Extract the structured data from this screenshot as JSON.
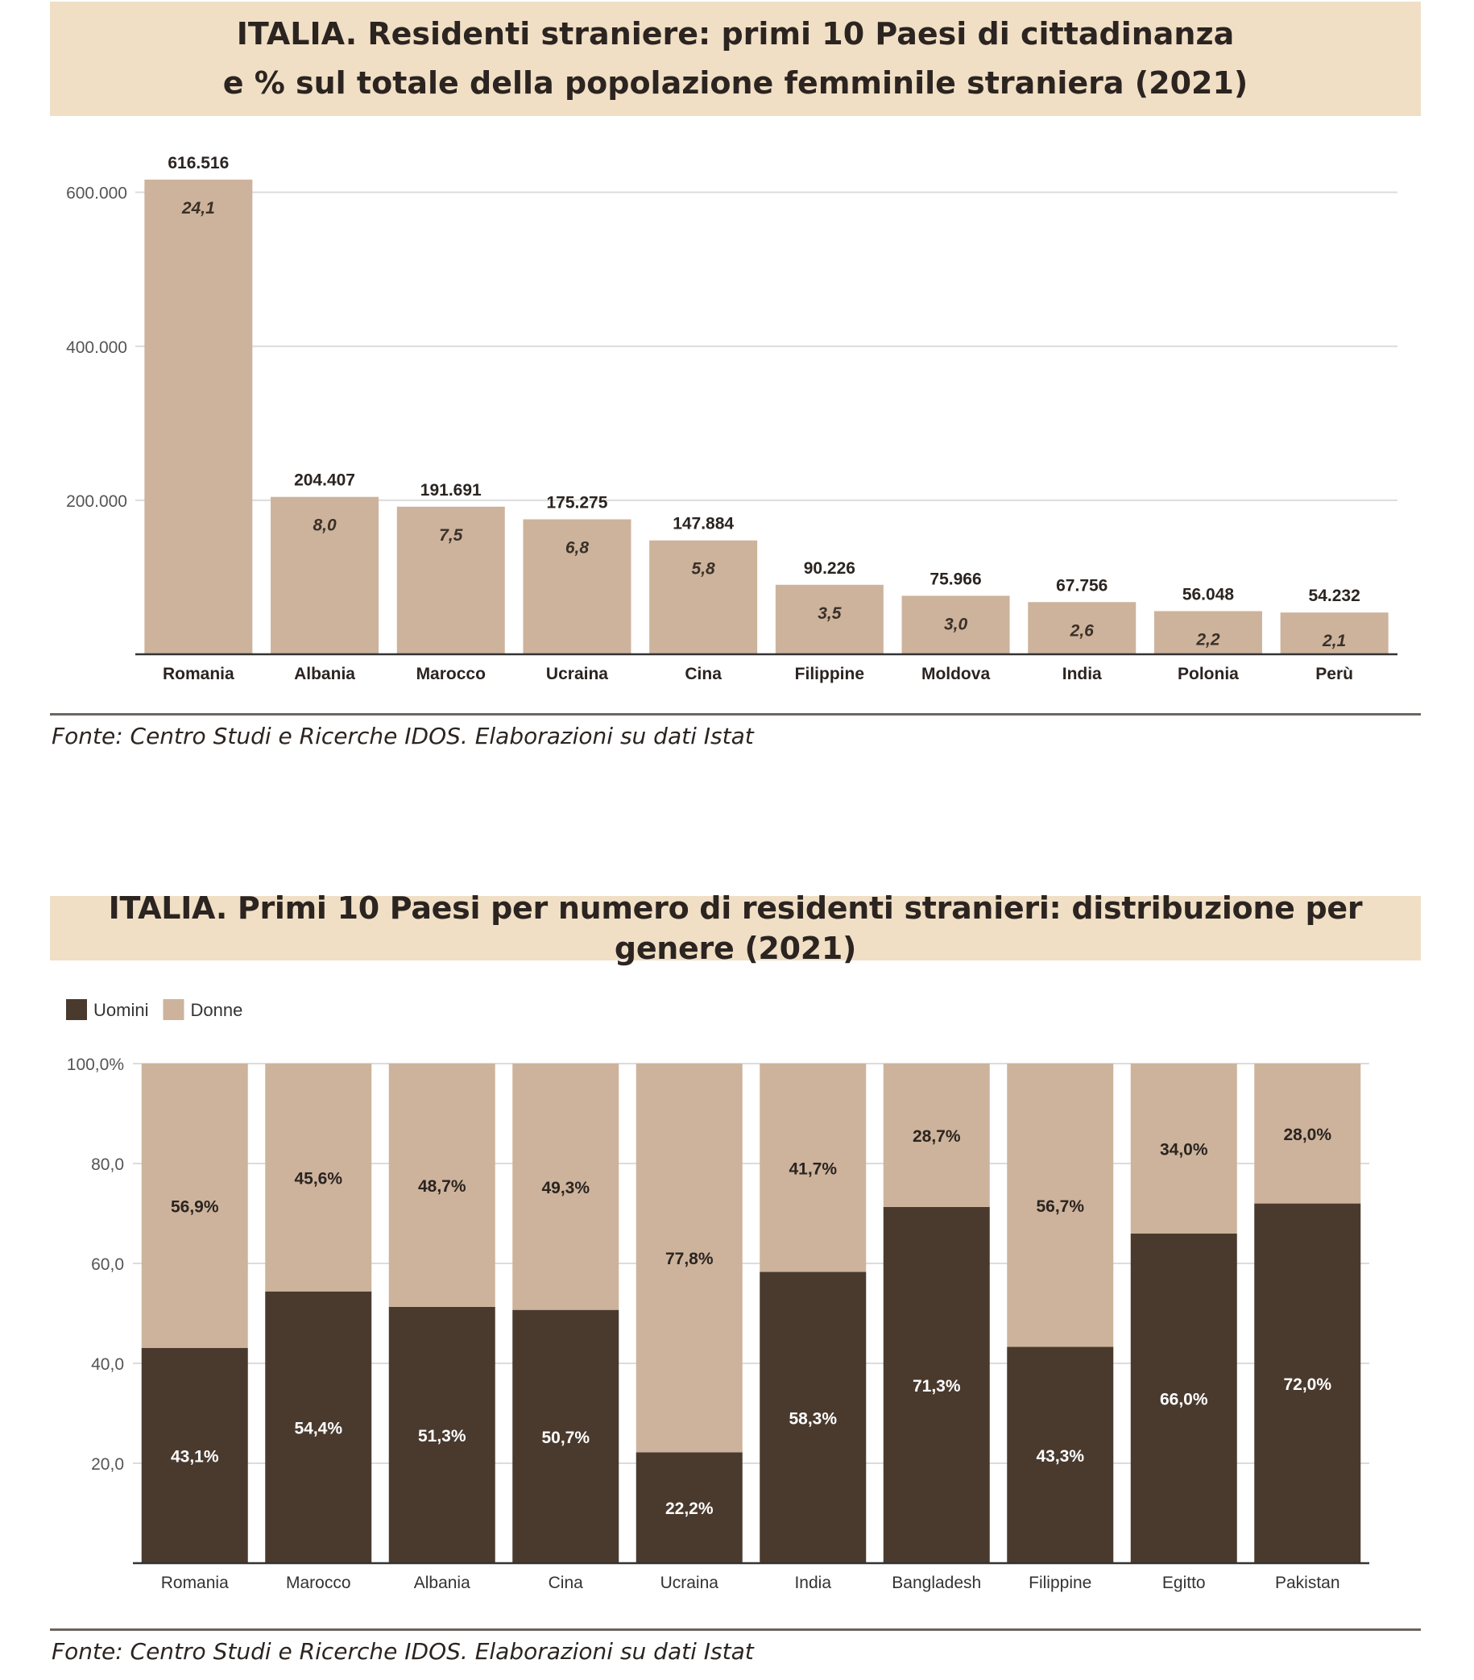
{
  "chart_data": [
    {
      "type": "bar",
      "title_line1": "ITALIA. Residenti straniere: primi 10 Paesi di cittadinanza",
      "title_line2": "e % sul totale della popolazione femminile straniera (2021)",
      "categories": [
        "Romania",
        "Albania",
        "Marocco",
        "Ucraina",
        "Cina",
        "Filippine",
        "Moldova",
        "India",
        "Polonia",
        "Perù"
      ],
      "values": [
        616516,
        204407,
        191691,
        175275,
        147884,
        90226,
        75966,
        67756,
        56048,
        54232
      ],
      "value_labels": [
        "616.516",
        "204.407",
        "191.691",
        "175.275",
        "147.884",
        "90.226",
        "75.966",
        "67.756",
        "56.048",
        "54.232"
      ],
      "percent_labels": [
        "24,1",
        "8,0",
        "7,5",
        "6,8",
        "5,8",
        "3,5",
        "3,0",
        "2,6",
        "2,2",
        "2,1"
      ],
      "yticks": [
        200000,
        400000,
        600000
      ],
      "ytick_labels": [
        "200.000",
        "400.000",
        "600.000"
      ],
      "ylim": [
        0,
        630000
      ],
      "grid": true,
      "bar_color": "#cdb39c",
      "source": "Fonte: Centro Studi e Ricerche IDOS. Elaborazioni su dati Istat"
    },
    {
      "type": "bar",
      "stacked": true,
      "title": "ITALIA. Primi 10 Paesi per numero di residenti stranieri: distribuzione per genere (2021)",
      "categories": [
        "Romania",
        "Marocco",
        "Albania",
        "Cina",
        "Ucraina",
        "India",
        "Bangladesh",
        "Filippine",
        "Egitto",
        "Pakistan"
      ],
      "series": [
        {
          "name": "Uomini",
          "color": "#4a3a2e",
          "values": [
            43.1,
            54.4,
            51.3,
            50.7,
            22.2,
            58.3,
            71.3,
            43.3,
            66.0,
            72.0
          ],
          "labels": [
            "43,1%",
            "54,4%",
            "51,3%",
            "50,7%",
            "22,2%",
            "58,3%",
            "71,3%",
            "43,3%",
            "66,0%",
            "72,0%"
          ]
        },
        {
          "name": "Donne",
          "color": "#cdb39c",
          "values": [
            56.9,
            45.6,
            48.7,
            49.3,
            77.8,
            41.7,
            28.7,
            56.7,
            34.0,
            28.0
          ],
          "labels": [
            "56,9%",
            "45,6%",
            "48,7%",
            "49,3%",
            "77,8%",
            "41,7%",
            "28,7%",
            "56,7%",
            "34,0%",
            "28,0%"
          ]
        }
      ],
      "yticks": [
        20,
        40,
        60,
        80,
        100
      ],
      "ytick_labels": [
        "20,0",
        "40,0",
        "60,0",
        "80,0",
        "100,0%"
      ],
      "ylim": [
        0,
        100
      ],
      "legend": "top-left",
      "source": "Fonte: Centro Studi e Ricerche IDOS. Elaborazioni su dati Istat"
    }
  ]
}
